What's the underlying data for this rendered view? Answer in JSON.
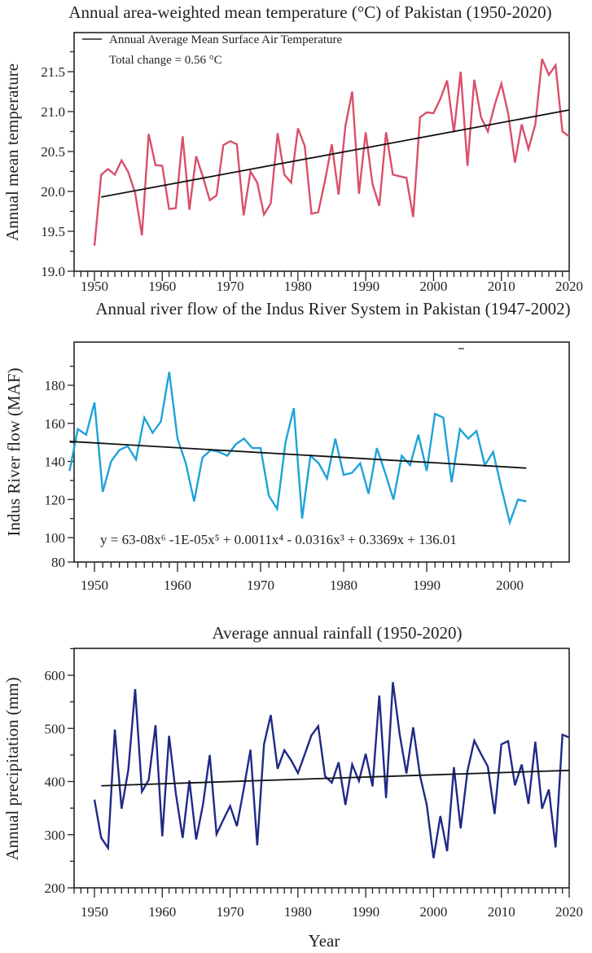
{
  "chart_data": [
    {
      "type": "line",
      "title": "Annual area-weighted mean temperature (°C) of Pakistan (1950-2020)",
      "xlabel": "",
      "ylabel": "Annual mean temperature",
      "xlim": [
        1947,
        2020
      ],
      "ylim": [
        19.0,
        21.8
      ],
      "x_ticks": [
        1950,
        1960,
        1970,
        1980,
        1990,
        2000,
        2010,
        2020
      ],
      "y_ticks": [
        19.0,
        19.5,
        20.0,
        20.5,
        21.0,
        21.5
      ],
      "y_tick_labels": [
        "19.0",
        "19.5",
        "20.0",
        "20.5",
        "21.0",
        "21.5"
      ],
      "grid": false,
      "legend": {
        "placement": "top-left",
        "entries": [
          "Annual Average Mean Surface Air Temperature"
        ]
      },
      "annotations": [
        "Total change = 0.56 °C"
      ],
      "color": "#d9506a",
      "trend_color": "#111111",
      "series": [
        {
          "name": "Annual mean temperature",
          "x": [
            1950,
            1951,
            1952,
            1953,
            1954,
            1955,
            1956,
            1957,
            1958,
            1959,
            1960,
            1961,
            1962,
            1963,
            1964,
            1965,
            1966,
            1967,
            1968,
            1969,
            1970,
            1971,
            1972,
            1973,
            1974,
            1975,
            1976,
            1977,
            1978,
            1979,
            1980,
            1981,
            1982,
            1983,
            1984,
            1985,
            1986,
            1987,
            1988,
            1989,
            1990,
            1991,
            1992,
            1993,
            1994,
            1995,
            1996,
            1997,
            1998,
            1999,
            2000,
            2001,
            2002,
            2003,
            2004,
            2005,
            2006,
            2007,
            2008,
            2009,
            2010,
            2011,
            2012,
            2013,
            2014,
            2015,
            2016,
            2017,
            2018,
            2019,
            2020
          ],
          "values": [
            19.32,
            20.21,
            20.28,
            20.21,
            20.39,
            20.24,
            19.98,
            19.45,
            20.72,
            20.33,
            20.32,
            19.78,
            19.79,
            20.69,
            19.77,
            20.44,
            20.18,
            19.89,
            19.95,
            20.58,
            20.63,
            20.59,
            19.7,
            20.25,
            20.11,
            19.71,
            19.85,
            20.73,
            20.21,
            20.11,
            20.79,
            20.57,
            19.72,
            19.74,
            20.14,
            20.59,
            19.96,
            20.82,
            21.25,
            19.97,
            20.74,
            20.09,
            19.82,
            20.74,
            20.21,
            20.19,
            20.17,
            19.68,
            20.93,
            20.99,
            20.98,
            21.16,
            21.39,
            20.74,
            21.5,
            20.32,
            21.4,
            20.93,
            20.75,
            21.08,
            21.35,
            20.98,
            20.36,
            20.84,
            20.53,
            20.84,
            21.66,
            21.46,
            21.58,
            20.75,
            20.69
          ]
        }
      ],
      "trend": {
        "x": [
          1951,
          2020
        ],
        "values": [
          19.93,
          21.02
        ]
      }
    },
    {
      "type": "line",
      "title": "Annual river flow of the Indus River System in Pakistan (1947-2002)",
      "xlabel": "",
      "ylabel": "Indus River flow (MAF)",
      "xlim": [
        1947,
        2005
      ],
      "ylim": [
        80,
        200
      ],
      "x_ticks": [
        1950,
        1960,
        1970,
        1980,
        1990,
        2000
      ],
      "y_ticks": [
        80,
        100,
        120,
        140,
        160,
        180
      ],
      "grid": false,
      "annotations": [
        "y = 63-08x⁶ -1E-05x⁵ + 0.0011x⁴ - 0.0316x³ + 0.3369x + 136.01"
      ],
      "color": "#1ea3d8",
      "trend_color": "#111111",
      "series": [
        {
          "name": "Indus River flow",
          "x": [
            1947,
            1948,
            1949,
            1950,
            1951,
            1952,
            1953,
            1954,
            1955,
            1956,
            1957,
            1958,
            1959,
            1960,
            1961,
            1962,
            1963,
            1964,
            1965,
            1966,
            1967,
            1968,
            1969,
            1970,
            1971,
            1972,
            1973,
            1974,
            1975,
            1976,
            1977,
            1978,
            1979,
            1980,
            1981,
            1982,
            1983,
            1984,
            1985,
            1986,
            1987,
            1988,
            1989,
            1990,
            1991,
            1992,
            1993,
            1994,
            1995,
            1996,
            1997,
            1998,
            1999,
            2000,
            2001,
            2002
          ],
          "values": [
            135,
            157,
            154,
            171,
            124,
            140,
            146,
            148,
            141,
            163,
            155,
            161,
            187,
            152,
            139,
            119,
            142,
            146,
            145,
            143,
            149,
            152,
            147,
            147,
            122,
            115,
            150,
            168,
            110,
            143,
            139,
            131,
            152,
            133,
            134,
            139,
            123,
            147,
            134,
            120,
            143,
            138,
            154,
            135,
            165,
            163,
            129,
            157,
            152,
            156,
            138,
            145,
            126,
            108,
            120,
            119
          ]
        }
      ],
      "trend": {
        "x": [
          1947,
          2002
        ],
        "values": [
          150.5,
          136.5
        ]
      }
    },
    {
      "type": "line",
      "title": "Average annual rainfall (1950-2020)",
      "xlabel": "Year",
      "ylabel": "Annual precipitation (mm)",
      "xlim": [
        1947,
        2020
      ],
      "ylim": [
        200,
        650
      ],
      "x_ticks": [
        1950,
        1960,
        1970,
        1980,
        1990,
        2000,
        2010,
        2020
      ],
      "y_ticks": [
        200,
        300,
        400,
        500,
        600
      ],
      "grid": false,
      "color": "#1f2a85",
      "trend_color": "#111111",
      "series": [
        {
          "name": "Annual precipitation",
          "x": [
            1950,
            1951,
            1952,
            1953,
            1954,
            1955,
            1956,
            1957,
            1958,
            1959,
            1960,
            1961,
            1962,
            1963,
            1964,
            1965,
            1966,
            1967,
            1968,
            1969,
            1970,
            1971,
            1972,
            1973,
            1974,
            1975,
            1976,
            1977,
            1978,
            1979,
            1980,
            1981,
            1982,
            1983,
            1984,
            1985,
            1986,
            1987,
            1988,
            1989,
            1990,
            1991,
            1992,
            1993,
            1994,
            1995,
            1996,
            1997,
            1998,
            1999,
            2000,
            2001,
            2002,
            2003,
            2004,
            2005,
            2006,
            2007,
            2008,
            2009,
            2010,
            2011,
            2012,
            2013,
            2014,
            2015,
            2016,
            2017,
            2018,
            2019,
            2020
          ],
          "values": [
            366,
            294,
            275,
            498,
            349,
            422,
            574,
            381,
            403,
            506,
            297,
            486,
            378,
            294,
            402,
            291,
            357,
            450,
            301,
            328,
            354,
            316,
            385,
            460,
            280,
            470,
            525,
            424,
            459,
            440,
            416,
            451,
            487,
            504,
            410,
            398,
            436,
            356,
            432,
            401,
            452,
            391,
            562,
            369,
            587,
            489,
            415,
            502,
            411,
            356,
            256,
            335,
            269,
            427,
            312,
            420,
            477,
            452,
            428,
            339,
            470,
            476,
            393,
            432,
            358,
            475,
            349,
            385,
            276,
            488,
            483
          ]
        }
      ],
      "trend": {
        "x": [
          1951,
          2020
        ],
        "values": [
          392,
          421
        ]
      }
    }
  ]
}
